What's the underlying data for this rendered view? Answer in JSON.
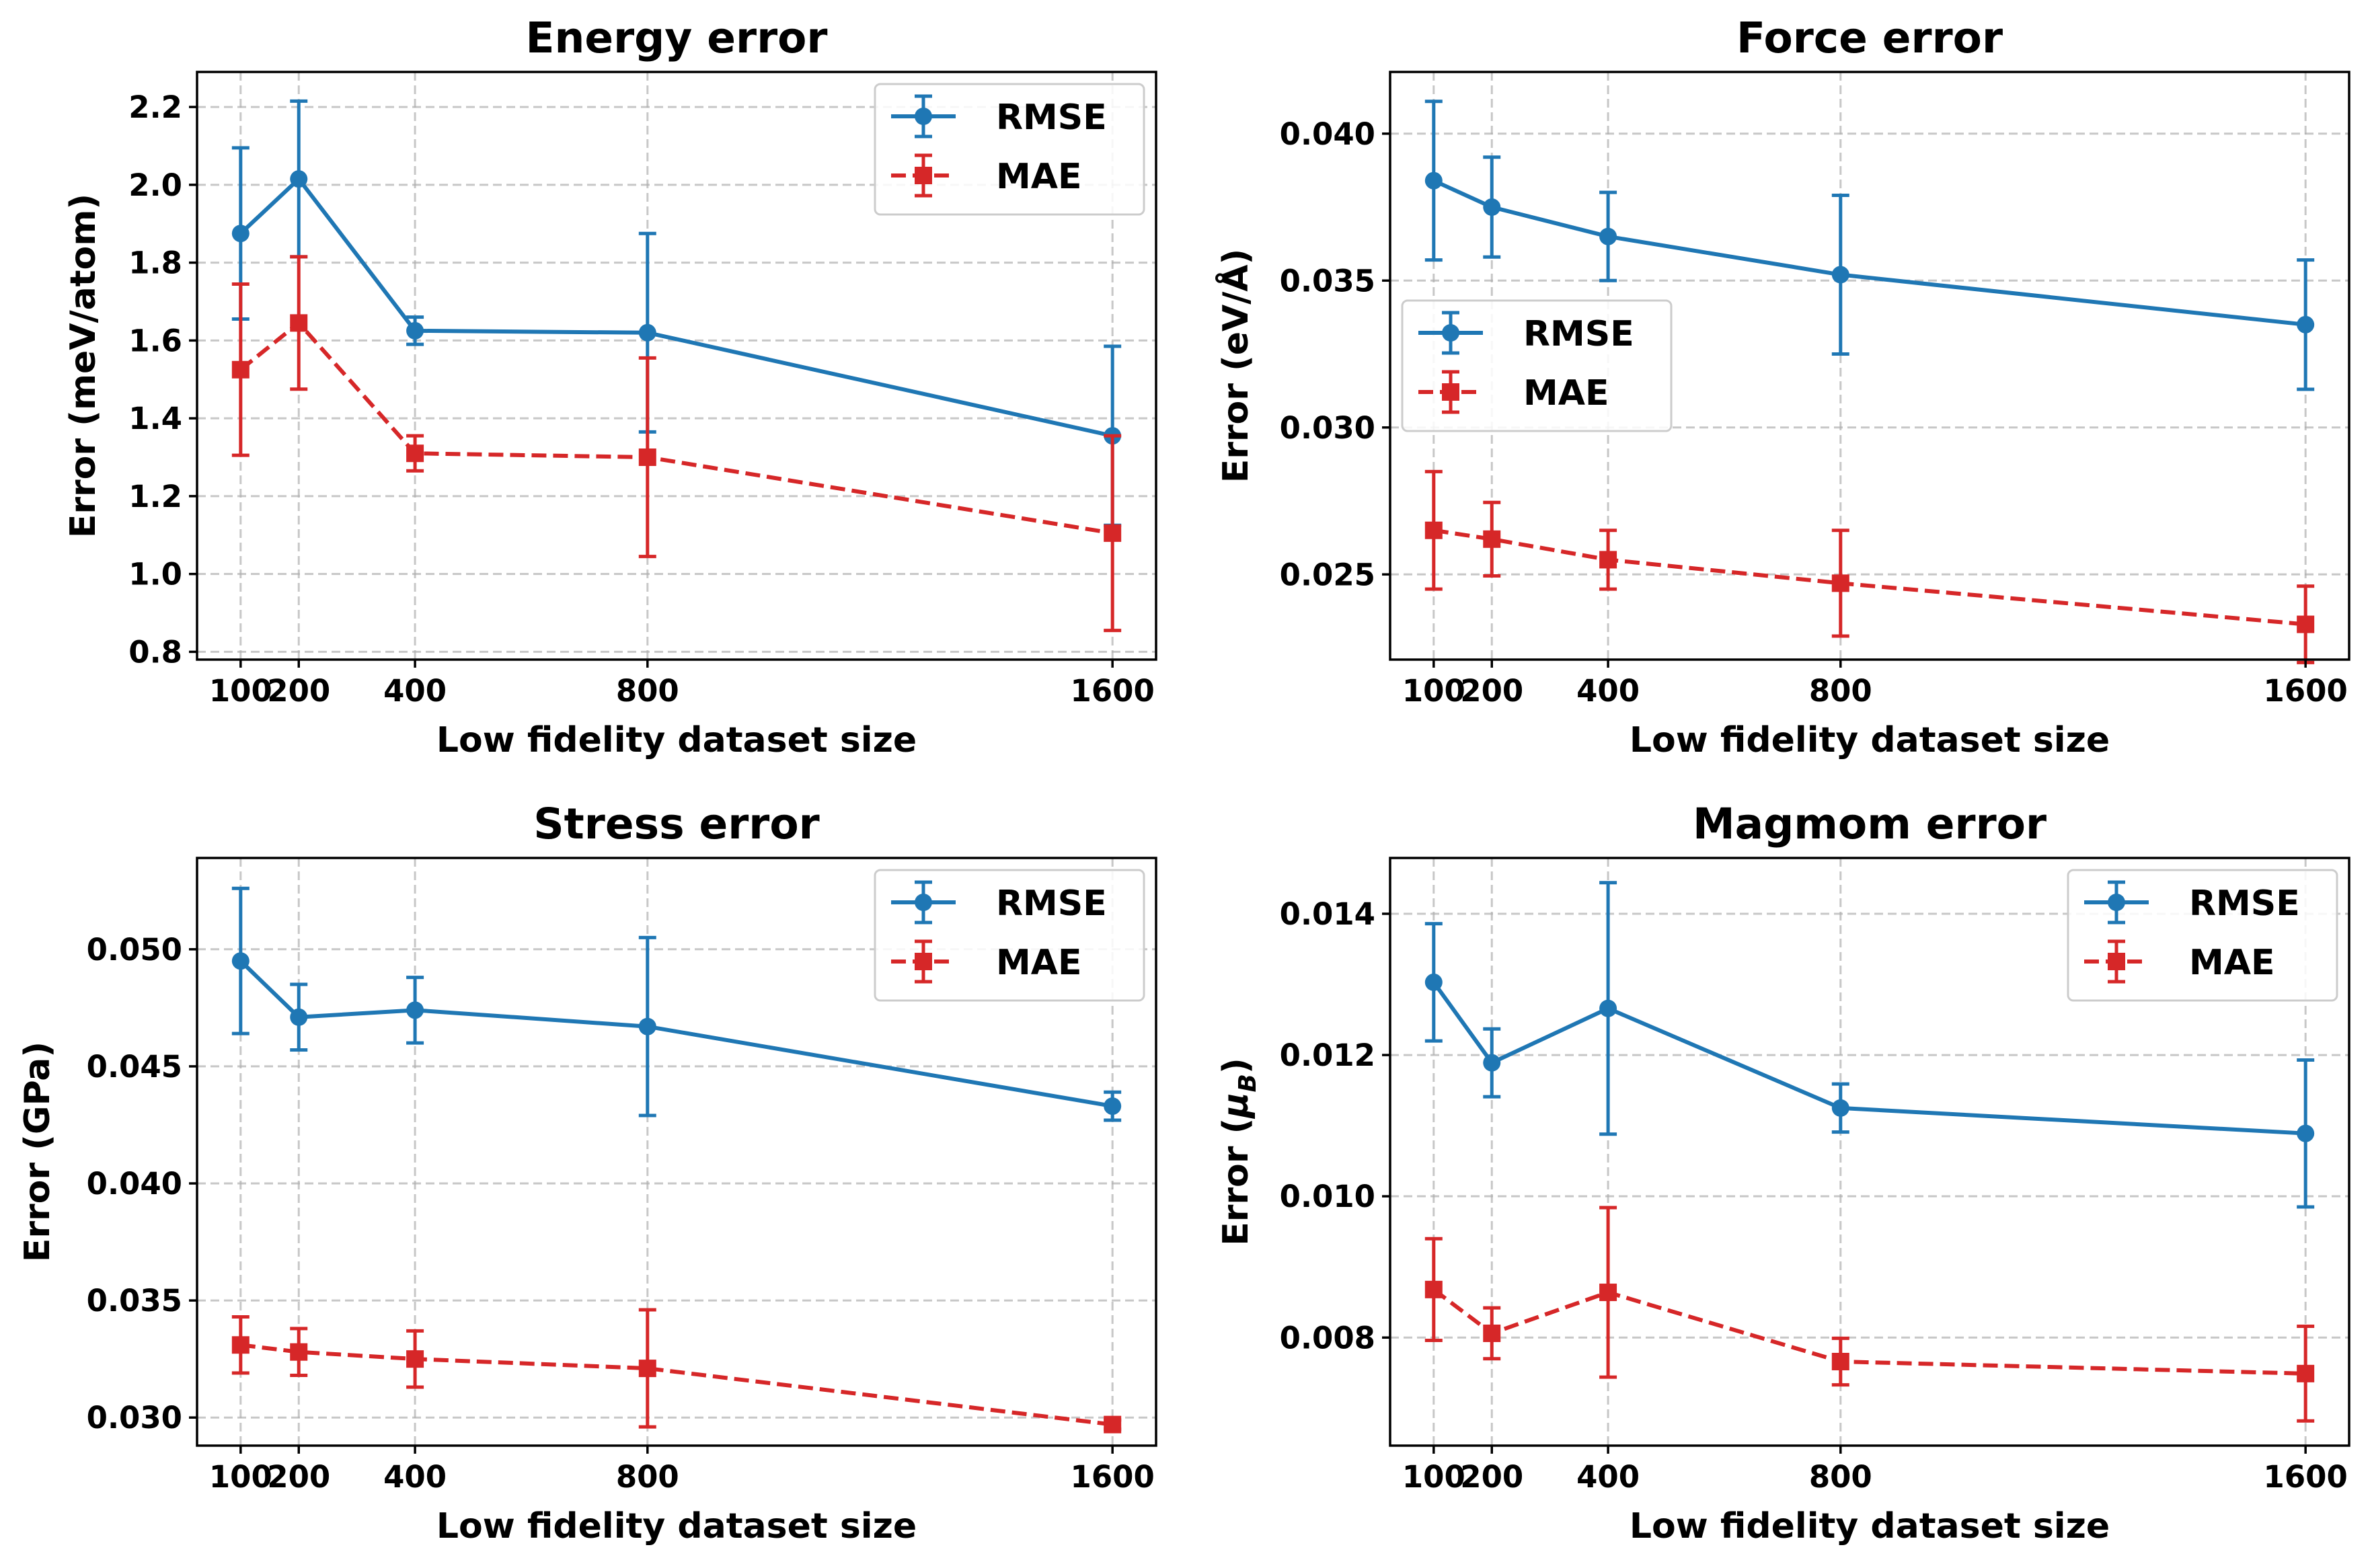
{
  "colors": {
    "rmse": "#1f77b4",
    "mae": "#d62728"
  },
  "chart_data": [
    {
      "type": "line",
      "title": "Energy error",
      "xlabel": "Low fidelity dataset size",
      "ylabel": "Error (meV/atom)",
      "x": [
        100,
        200,
        400,
        800,
        1600
      ],
      "xticks": [
        100,
        200,
        400,
        800,
        1600
      ],
      "xtick_labels": [
        "100",
        "200",
        "400",
        "800",
        "1600"
      ],
      "xlim": [
        25,
        1675
      ],
      "ylim": [
        0.78,
        2.29
      ],
      "yticks": [
        0.8,
        1.0,
        1.2,
        1.4,
        1.6,
        1.8,
        2.0,
        2.2
      ],
      "ytick_labels": [
        "0.8",
        "1.0",
        "1.2",
        "1.4",
        "1.6",
        "1.8",
        "2.0",
        "2.2"
      ],
      "legend_loc": "upper right",
      "grid": true,
      "series": [
        {
          "name": "RMSE",
          "color_key": "rmse",
          "marker": "circle",
          "linestyle": "solid",
          "values": [
            1.875,
            2.015,
            1.625,
            1.62,
            1.355
          ],
          "errors": [
            0.22,
            0.2,
            0.035,
            0.255,
            0.23
          ]
        },
        {
          "name": "MAE",
          "color_key": "mae",
          "marker": "square",
          "linestyle": "dashed",
          "values": [
            1.525,
            1.645,
            1.31,
            1.3,
            1.105
          ],
          "errors": [
            0.22,
            0.17,
            0.045,
            0.255,
            0.25
          ]
        }
      ]
    },
    {
      "type": "line",
      "title": "Force error",
      "xlabel": "Low fidelity dataset size",
      "ylabel": "Error (eV/Å)",
      "x": [
        100,
        200,
        400,
        800,
        1600
      ],
      "xticks": [
        100,
        200,
        400,
        800,
        1600
      ],
      "xtick_labels": [
        "100",
        "200",
        "400",
        "800",
        "1600"
      ],
      "xlim": [
        25,
        1675
      ],
      "ylim": [
        0.0221,
        0.0421
      ],
      "yticks": [
        0.025,
        0.03,
        0.035,
        0.04
      ],
      "ytick_labels": [
        "0.025",
        "0.030",
        "0.035",
        "0.040"
      ],
      "legend_loc": "center left",
      "grid": true,
      "series": [
        {
          "name": "RMSE",
          "color_key": "rmse",
          "marker": "circle",
          "linestyle": "solid",
          "values": [
            0.0384,
            0.0375,
            0.0365,
            0.0352,
            0.0335
          ],
          "errors": [
            0.0027,
            0.0017,
            0.0015,
            0.0027,
            0.0022
          ]
        },
        {
          "name": "MAE",
          "color_key": "mae",
          "marker": "square",
          "linestyle": "dashed",
          "values": [
            0.0265,
            0.0262,
            0.0255,
            0.0247,
            0.0233
          ],
          "errors": [
            0.002,
            0.00125,
            0.001,
            0.0018,
            0.0013
          ]
        }
      ]
    },
    {
      "type": "line",
      "title": "Stress error",
      "xlabel": "Low fidelity dataset size",
      "ylabel": "Error (GPa)",
      "x": [
        100,
        200,
        400,
        800,
        1600
      ],
      "xticks": [
        100,
        200,
        400,
        800,
        1600
      ],
      "xtick_labels": [
        "100",
        "200",
        "400",
        "800",
        "1600"
      ],
      "xlim": [
        25,
        1675
      ],
      "ylim": [
        0.0288,
        0.0539
      ],
      "yticks": [
        0.03,
        0.035,
        0.04,
        0.045,
        0.05
      ],
      "ytick_labels": [
        "0.030",
        "0.035",
        "0.040",
        "0.045",
        "0.050"
      ],
      "legend_loc": "upper right",
      "grid": true,
      "series": [
        {
          "name": "RMSE",
          "color_key": "rmse",
          "marker": "circle",
          "linestyle": "solid",
          "values": [
            0.0495,
            0.0471,
            0.0474,
            0.0467,
            0.0433
          ],
          "errors": [
            0.0031,
            0.0014,
            0.0014,
            0.0038,
            0.0006
          ]
        },
        {
          "name": "MAE",
          "color_key": "mae",
          "marker": "square",
          "linestyle": "dashed",
          "values": [
            0.0331,
            0.0328,
            0.0325,
            0.0321,
            0.0297
          ],
          "errors": [
            0.0012,
            0.001,
            0.0012,
            0.0025,
            0.0002
          ]
        }
      ]
    },
    {
      "type": "line",
      "title": "Magmom error",
      "xlabel": "Low fidelity dataset size",
      "ylabel": "Error (μ_B)",
      "ylabel_main": "Error (",
      "ylabel_symbol": "μ",
      "ylabel_subscript": "B",
      "ylabel_close": ")",
      "x": [
        100,
        200,
        400,
        800,
        1600
      ],
      "xticks": [
        100,
        200,
        400,
        800,
        1600
      ],
      "xtick_labels": [
        "100",
        "200",
        "400",
        "800",
        "1600"
      ],
      "xlim": [
        25,
        1675
      ],
      "ylim": [
        0.00647,
        0.01479
      ],
      "yticks": [
        0.008,
        0.01,
        0.012,
        0.014
      ],
      "ytick_labels": [
        "0.008",
        "0.010",
        "0.012",
        "0.014"
      ],
      "legend_loc": "upper right",
      "grid": true,
      "series": [
        {
          "name": "RMSE",
          "color_key": "rmse",
          "marker": "circle",
          "linestyle": "solid",
          "values": [
            0.01303,
            0.01189,
            0.01266,
            0.01125,
            0.01089
          ],
          "errors": [
            0.00083,
            0.00048,
            0.00178,
            0.00034,
            0.00104
          ]
        },
        {
          "name": "MAE",
          "color_key": "mae",
          "marker": "square",
          "linestyle": "dashed",
          "values": [
            0.00868,
            0.00806,
            0.00864,
            0.00766,
            0.00749
          ],
          "errors": [
            0.00072,
            0.00036,
            0.0012,
            0.00033,
            0.00067
          ]
        }
      ]
    }
  ]
}
